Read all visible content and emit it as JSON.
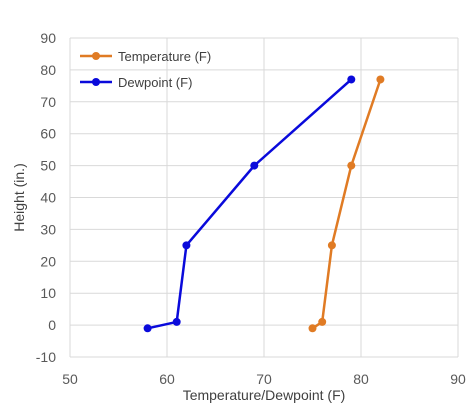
{
  "chart_data": {
    "type": "line",
    "title": "",
    "xlabel": "Temperature/Dewpoint  (F)",
    "ylabel": "Height (in.)",
    "xlim": [
      50,
      90
    ],
    "ylim": [
      -10,
      90
    ],
    "xticks": [
      50,
      60,
      70,
      80,
      90
    ],
    "yticks": [
      -10,
      0,
      10,
      20,
      30,
      40,
      50,
      60,
      70,
      80,
      90
    ],
    "grid": true,
    "legend": "top-left",
    "series": [
      {
        "name": "Temperature (F)",
        "color": "#e07b24",
        "points": [
          {
            "x": 75,
            "y": -1
          },
          {
            "x": 76,
            "y": 1
          },
          {
            "x": 77,
            "y": 25
          },
          {
            "x": 79,
            "y": 50
          },
          {
            "x": 82,
            "y": 77
          }
        ]
      },
      {
        "name": "Dewpoint (F)",
        "color": "#0a0adb",
        "points": [
          {
            "x": 58,
            "y": -1
          },
          {
            "x": 61,
            "y": 1
          },
          {
            "x": 62,
            "y": 25
          },
          {
            "x": 69,
            "y": 50
          },
          {
            "x": 79,
            "y": 77
          }
        ]
      }
    ]
  }
}
